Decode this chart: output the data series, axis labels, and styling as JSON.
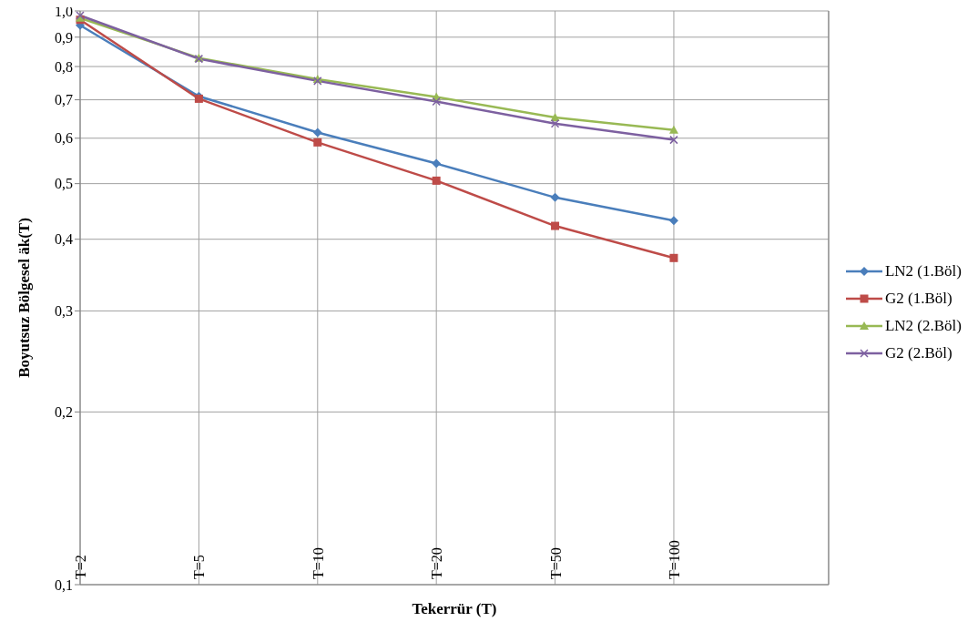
{
  "chart_data": {
    "type": "line",
    "xlabel": "Tekerrür  (T)",
    "ylabel": "Boyutsuz Bölgesel  äk(T)",
    "categories": [
      "T=2",
      "T=5",
      "T=10",
      "T=20",
      "T=50",
      "T=100"
    ],
    "ylim": [
      0.1,
      1
    ],
    "yticks": [
      {
        "value": 0.1,
        "label": "0,1"
      },
      {
        "value": 0.2,
        "label": "0,2"
      },
      {
        "value": 0.3,
        "label": "0,3"
      },
      {
        "value": 0.4,
        "label": "0,4"
      },
      {
        "value": 0.5,
        "label": "0,5"
      },
      {
        "value": 0.6,
        "label": "0,6"
      },
      {
        "value": 0.7,
        "label": "0,7"
      },
      {
        "value": 0.8,
        "label": "0,8"
      },
      {
        "value": 0.9,
        "label": "0,9"
      },
      {
        "value": 1,
        "label": "1,0"
      }
    ],
    "log": "y",
    "grid": true,
    "legend": "right",
    "line_style": "solid",
    "series": [
      {
        "name": "LN2 (1.Böl)",
        "color": "#4a7ebb",
        "marker": "diamond",
        "values": [
          0.944,
          0.71,
          0.614,
          0.542,
          0.473,
          0.431
        ]
      },
      {
        "name": "G2 (1.Böl)",
        "color": "#be4b48",
        "marker": "square",
        "values": [
          0.965,
          0.703,
          0.59,
          0.506,
          0.422,
          0.371
        ]
      },
      {
        "name": "LN2 (2.Böl)",
        "color": "#98b954",
        "marker": "triangle",
        "values": [
          0.972,
          0.828,
          0.76,
          0.708,
          0.652,
          0.62
        ]
      },
      {
        "name": "G2 (2.Böl)",
        "color": "#7d60a0",
        "marker": "cross",
        "values": [
          0.982,
          0.825,
          0.755,
          0.695,
          0.636,
          0.596
        ]
      }
    ]
  }
}
